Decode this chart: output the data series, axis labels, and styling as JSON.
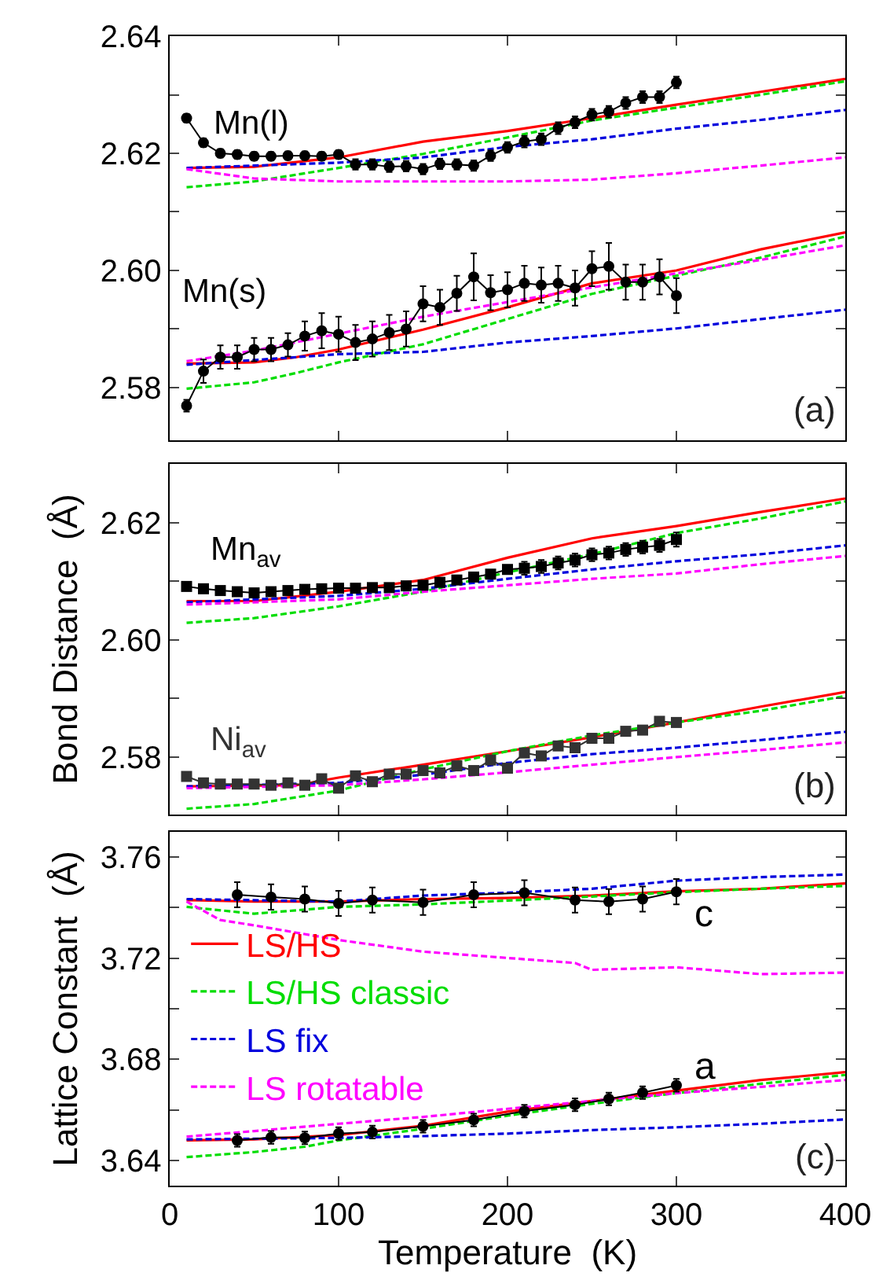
{
  "chart_data": [
    {
      "type": "line",
      "xlim": [
        0,
        400
      ],
      "xticks": [
        0,
        100,
        200,
        300,
        400
      ],
      "ylim": [
        2.571,
        2.64
      ],
      "tick_labels": "y",
      "yticks": [
        {
          "value": 2.58,
          "label": "2.58"
        },
        {
          "value": 2.59,
          "label": null
        },
        {
          "value": 2.6,
          "label": "2.60"
        },
        {
          "value": 2.61,
          "label": null
        },
        {
          "value": 2.62,
          "label": "2.62"
        },
        {
          "value": 2.63,
          "label": null
        },
        {
          "value": 2.64,
          "label": "2.64"
        }
      ],
      "annotations": [
        "(a)"
      ],
      "series": [
        {
          "color": "#ff0000",
          "line_style": "solid",
          "x": [
            10,
            50,
            100,
            150,
            200,
            250,
            300,
            350,
            400
          ],
          "values": [
            2.6175,
            2.6177,
            2.6193,
            2.622,
            2.6238,
            2.626,
            2.6283,
            2.6305,
            2.6327
          ]
        },
        {
          "color": "#00dd00",
          "line_style": "dashed",
          "x": [
            10,
            50,
            100,
            150,
            200,
            250,
            300,
            350,
            400
          ],
          "values": [
            2.6142,
            2.6152,
            2.6175,
            2.6199,
            2.6227,
            2.6256,
            2.6278,
            2.63,
            2.6323
          ]
        },
        {
          "color": "#0000dd",
          "line_style": "dashed",
          "x": [
            10,
            100,
            150,
            200,
            250,
            300,
            350,
            400
          ],
          "values": [
            2.6175,
            2.6184,
            2.6193,
            2.6211,
            2.6224,
            2.6242,
            2.6257,
            2.6274
          ]
        },
        {
          "color": "#ff00ff",
          "line_style": "dashed",
          "x": [
            10,
            50,
            100,
            150,
            200,
            250,
            300,
            350,
            400
          ],
          "values": [
            2.6173,
            2.6157,
            2.6152,
            2.6152,
            2.6152,
            2.6155,
            2.6166,
            2.6179,
            2.6193
          ]
        },
        {
          "color": "#ff0000",
          "line_style": "solid",
          "x": [
            10,
            50,
            75,
            100,
            150,
            200,
            250,
            300,
            350,
            400
          ],
          "values": [
            2.5841,
            2.5843,
            2.5852,
            2.5865,
            2.5899,
            2.5937,
            2.5978,
            2.6,
            2.6036,
            2.6065
          ]
        },
        {
          "color": "#00dd00",
          "line_style": "dashed",
          "x": [
            10,
            50,
            75,
            100,
            150,
            200,
            250,
            300,
            350,
            400
          ],
          "values": [
            2.5798,
            2.5809,
            2.5825,
            2.5843,
            2.5874,
            2.5917,
            2.596,
            2.5991,
            2.6022,
            2.6058
          ]
        },
        {
          "color": "#0000dd",
          "line_style": "dashed",
          "x": [
            10,
            100,
            150,
            200,
            250,
            300,
            350,
            400
          ],
          "values": [
            2.5839,
            2.5857,
            2.5861,
            2.5877,
            2.5888,
            2.5901,
            2.5917,
            2.5933
          ]
        },
        {
          "color": "#ff00ff",
          "line_style": "dashed",
          "x": [
            10,
            50,
            100,
            150,
            200,
            250,
            300,
            350,
            400
          ],
          "values": [
            2.5845,
            2.5863,
            2.5892,
            2.5921,
            2.5946,
            2.5971,
            2.5995,
            2.6018,
            2.6043
          ]
        },
        {
          "name": "Mn(l)",
          "color": "#000000",
          "marker": "circle",
          "line_style": "solid",
          "x": [
            10,
            20,
            30,
            40,
            50,
            60,
            70,
            80,
            90,
            100,
            110,
            120,
            130,
            140,
            150,
            160,
            170,
            180,
            190,
            200,
            210,
            220,
            230,
            240,
            250,
            260,
            270,
            280,
            290,
            300
          ],
          "values": [
            2.626,
            2.6218,
            2.62,
            2.6198,
            2.6195,
            2.6195,
            2.6196,
            2.6196,
            2.6195,
            2.6198,
            2.6181,
            2.6181,
            2.6177,
            2.6178,
            2.6173,
            2.6182,
            2.6181,
            2.6179,
            2.6196,
            2.621,
            2.622,
            2.6224,
            2.6243,
            2.6253,
            2.6266,
            2.6271,
            2.6286,
            2.6296,
            2.6296,
            2.6321
          ],
          "errors": [
            0.0007,
            0.0007,
            0.0007,
            0.0007,
            0.0007,
            0.0007,
            0.0007,
            0.0007,
            0.0007,
            0.0007,
            0.0009,
            0.0009,
            0.0009,
            0.0009,
            0.0009,
            0.0009,
            0.0009,
            0.0009,
            0.0009,
            0.0009,
            0.001,
            0.001,
            0.001,
            0.001,
            0.001,
            0.001,
            0.001,
            0.001,
            0.001,
            0.001
          ]
        },
        {
          "name": "Mn(s)",
          "color": "#000000",
          "marker": "circle",
          "line_style": "solid",
          "x": [
            10,
            20,
            30,
            40,
            50,
            60,
            70,
            80,
            90,
            100,
            110,
            120,
            130,
            140,
            150,
            160,
            170,
            180,
            190,
            200,
            210,
            220,
            230,
            240,
            250,
            260,
            270,
            280,
            290,
            300
          ],
          "values": [
            2.5769,
            2.5828,
            2.5852,
            2.5852,
            2.5865,
            2.5865,
            2.5873,
            2.5888,
            2.5897,
            2.5891,
            2.5877,
            2.5883,
            2.5894,
            2.59,
            2.5943,
            2.5937,
            2.5961,
            2.5989,
            2.5962,
            2.5967,
            2.5978,
            2.5975,
            2.5978,
            2.597,
            2.6003,
            2.6007,
            2.598,
            2.598,
            2.5989,
            2.5957
          ],
          "errors": [
            0.001,
            0.002,
            0.002,
            0.002,
            0.002,
            0.002,
            0.002,
            0.0025,
            0.003,
            0.003,
            0.003,
            0.003,
            0.003,
            0.003,
            0.003,
            0.003,
            0.003,
            0.004,
            0.003,
            0.003,
            0.003,
            0.003,
            0.003,
            0.003,
            0.003,
            0.004,
            0.003,
            0.003,
            0.003,
            0.003
          ]
        }
      ]
    },
    {
      "type": "line",
      "xlim": [
        0,
        400
      ],
      "xticks": [
        0,
        100,
        200,
        300,
        400
      ],
      "ylim": [
        2.5702,
        2.63
      ],
      "tick_labels": "y",
      "ylabel": "Bond Distance  (Å)",
      "yticks": [
        {
          "value": 2.58,
          "label": "2.58"
        },
        {
          "value": 2.59,
          "label": null
        },
        {
          "value": 2.6,
          "label": "2.60"
        },
        {
          "value": 2.61,
          "label": null
        },
        {
          "value": 2.62,
          "label": "2.62"
        }
      ],
      "annotations": [
        "(b)"
      ],
      "series": [
        {
          "color": "#ff0000",
          "line_style": "solid",
          "x": [
            10,
            50,
            100,
            150,
            200,
            250,
            300,
            350,
            400
          ],
          "values": [
            2.6066,
            2.6066,
            2.6082,
            2.6102,
            2.614,
            2.6173,
            2.6194,
            2.6218,
            2.6241
          ]
        },
        {
          "color": "#00dd00",
          "line_style": "dashed",
          "x": [
            10,
            50,
            100,
            150,
            200,
            250,
            300,
            350,
            400
          ],
          "values": [
            2.6029,
            2.6037,
            2.6057,
            2.6082,
            2.6115,
            2.6146,
            2.6182,
            2.6207,
            2.6236
          ]
        },
        {
          "color": "#0000dd",
          "line_style": "dashed",
          "x": [
            10,
            100,
            150,
            200,
            250,
            300,
            350,
            400
          ],
          "values": [
            2.6064,
            2.6075,
            2.6087,
            2.6104,
            2.612,
            2.6134,
            2.6146,
            2.6161
          ]
        },
        {
          "color": "#ff00ff",
          "line_style": "dashed",
          "x": [
            10,
            100,
            150,
            200,
            250,
            300,
            350,
            400
          ],
          "values": [
            2.606,
            2.6069,
            2.6082,
            2.6093,
            2.6104,
            2.6113,
            2.6129,
            2.6143
          ]
        },
        {
          "color": "#ff0000",
          "line_style": "solid",
          "x": [
            10,
            75,
            100,
            150,
            200,
            250,
            300,
            350,
            400
          ],
          "values": [
            2.575,
            2.5752,
            2.5765,
            2.5787,
            2.581,
            2.5834,
            2.5859,
            2.5886,
            2.5911
          ]
        },
        {
          "color": "#00dd00",
          "line_style": "dashed",
          "x": [
            10,
            50,
            100,
            150,
            200,
            250,
            300,
            350,
            400
          ],
          "values": [
            2.5712,
            2.572,
            2.5743,
            2.5779,
            2.581,
            2.5837,
            2.5859,
            2.5879,
            2.5904
          ]
        },
        {
          "color": "#0000dd",
          "line_style": "dashed",
          "x": [
            10,
            100,
            150,
            200,
            250,
            300,
            350,
            400
          ],
          "values": [
            2.575,
            2.5756,
            2.577,
            2.579,
            2.5805,
            2.5816,
            2.5829,
            2.5843
          ]
        },
        {
          "color": "#ff00ff",
          "line_style": "dashed",
          "x": [
            10,
            100,
            150,
            200,
            250,
            300,
            350,
            400
          ],
          "values": [
            2.5747,
            2.5752,
            2.5762,
            2.5774,
            2.5787,
            2.58,
            2.5812,
            2.5825
          ]
        },
        {
          "name": "Mn$_{av}$",
          "color": "#000000",
          "marker": "square",
          "line_style": "solid",
          "x": [
            10,
            20,
            30,
            40,
            50,
            60,
            70,
            80,
            90,
            100,
            110,
            120,
            130,
            140,
            150,
            160,
            170,
            180,
            190,
            200,
            210,
            220,
            230,
            240,
            250,
            260,
            270,
            280,
            290,
            300
          ],
          "values": [
            2.6091,
            2.6087,
            2.6084,
            2.6082,
            2.608,
            2.6082,
            2.6084,
            2.6086,
            2.6087,
            2.6088,
            2.6088,
            2.6089,
            2.6089,
            2.6092,
            2.6093,
            2.6098,
            2.6102,
            2.6107,
            2.6112,
            2.612,
            2.6122,
            2.6125,
            2.6131,
            2.6136,
            2.6145,
            2.6148,
            2.6154,
            2.6158,
            2.6161,
            2.6171
          ],
          "errors": [
            null,
            null,
            null,
            null,
            null,
            null,
            null,
            null,
            null,
            null,
            null,
            null,
            null,
            null,
            null,
            null,
            null,
            null,
            null,
            null,
            0.0011,
            0.0011,
            0.0011,
            0.0011,
            0.0011,
            0.0011,
            0.0011,
            0.0011,
            0.0011,
            0.0012
          ]
        },
        {
          "name": "Ni$_{av}$",
          "color": "#333333",
          "marker": "square",
          "line_style": "solid",
          "x": [
            10,
            20,
            30,
            40,
            50,
            60,
            70,
            80,
            90,
            100,
            110,
            120,
            130,
            140,
            150,
            160,
            170,
            180,
            190,
            200,
            210,
            220,
            230,
            240,
            250,
            260,
            270,
            280,
            290,
            300
          ],
          "values": [
            2.5767,
            2.5756,
            2.5754,
            2.5754,
            2.5754,
            2.5752,
            2.5756,
            2.5752,
            2.5763,
            2.5747,
            2.5768,
            2.5758,
            2.5771,
            2.5771,
            2.5777,
            2.5773,
            2.5785,
            2.5777,
            2.5795,
            2.5781,
            2.5807,
            2.5802,
            2.5819,
            2.5816,
            2.5832,
            2.5832,
            2.5844,
            2.5846,
            2.5861,
            2.5859
          ]
        }
      ]
    },
    {
      "type": "line",
      "xlim": [
        0,
        400
      ],
      "xticks": [
        0,
        100,
        200,
        300,
        400
      ],
      "ylim": [
        3.63,
        3.77
      ],
      "xlabel": "Temperature  (K)",
      "ylabel": "Lattice Constant  (Å)",
      "legend": "left",
      "yticks": [
        {
          "value": 3.64,
          "label": "3.64"
        },
        {
          "value": 3.66,
          "label": null
        },
        {
          "value": 3.68,
          "label": "3.68"
        },
        {
          "value": 3.7,
          "label": null
        },
        {
          "value": 3.72,
          "label": "3.72"
        },
        {
          "value": 3.74,
          "label": null
        },
        {
          "value": 3.76,
          "label": "3.76"
        }
      ],
      "annotations": [
        "(c)"
      ],
      "series": [
        {
          "name": "LS/HS",
          "color": "#ff0000",
          "line_style": "solid",
          "x": [
            10,
            50,
            100,
            150,
            200,
            250,
            300,
            350,
            400
          ],
          "values": [
            3.743,
            3.7424,
            3.7424,
            3.7434,
            3.7438,
            3.7448,
            3.7465,
            3.7475,
            3.7496
          ]
        },
        {
          "name": "LS/HS classic",
          "color": "#00dd00",
          "line_style": "dashed",
          "x": [
            10,
            50,
            100,
            150,
            200,
            250,
            300,
            350,
            400
          ],
          "values": [
            3.7403,
            3.7376,
            3.7403,
            3.7413,
            3.7428,
            3.7444,
            3.7461,
            3.7475,
            3.7486
          ]
        },
        {
          "name": "LS fix",
          "color": "#0000dd",
          "line_style": "dashed",
          "x": [
            10,
            100,
            150,
            200,
            250,
            300,
            350,
            400
          ],
          "values": [
            3.7434,
            3.7424,
            3.7448,
            3.7459,
            3.7475,
            3.7507,
            3.7521,
            3.7531
          ]
        },
        {
          "name": "LS rotatable",
          "color": "#ff00ff",
          "line_style": "dashed",
          "x": [
            10,
            30,
            50,
            100,
            150,
            200,
            240,
            250,
            300,
            350,
            400
          ],
          "values": [
            3.7424,
            3.7351,
            3.733,
            3.7272,
            3.7226,
            3.7201,
            3.7181,
            3.7154,
            3.7164,
            3.7137,
            3.7143
          ]
        },
        {
          "color": "#ff0000",
          "line_style": "solid",
          "x": [
            10,
            50,
            100,
            150,
            200,
            250,
            300,
            350,
            400
          ],
          "values": [
            3.6479,
            3.6483,
            3.65,
            3.6537,
            3.6593,
            3.6635,
            3.6676,
            3.6718,
            3.6749
          ]
        },
        {
          "color": "#00dd00",
          "line_style": "dashed",
          "x": [
            10,
            50,
            80,
            100,
            150,
            200,
            250,
            300,
            350,
            400
          ],
          "values": [
            3.6413,
            3.6433,
            3.6454,
            3.6479,
            3.6525,
            3.6577,
            3.6624,
            3.6666,
            3.6703,
            3.6738
          ]
        },
        {
          "color": "#0000dd",
          "line_style": "dashed",
          "x": [
            10,
            100,
            150,
            200,
            250,
            300,
            350,
            400
          ],
          "values": [
            3.6483,
            3.6489,
            3.6496,
            3.6506,
            3.652,
            3.6531,
            3.6545,
            3.6562
          ]
        },
        {
          "color": "#ff00ff",
          "line_style": "dashed",
          "x": [
            10,
            50,
            100,
            150,
            200,
            250,
            300,
            350,
            400
          ],
          "values": [
            3.6494,
            3.6516,
            3.6545,
            3.6572,
            3.6604,
            3.6635,
            3.6666,
            3.6691,
            3.6718
          ]
        },
        {
          "name": "c",
          "color": "#000000",
          "marker": "circle",
          "line_style": "solid",
          "x": [
            40,
            60,
            80,
            100,
            120,
            150,
            180,
            210,
            240,
            260,
            280,
            300
          ],
          "values": [
            3.7451,
            3.7442,
            3.7434,
            3.7417,
            3.743,
            3.7421,
            3.7451,
            3.7459,
            3.743,
            3.7424,
            3.7434,
            3.7463
          ],
          "errors": [
            0.005,
            0.005,
            0.005,
            0.005,
            0.005,
            0.005,
            0.005,
            0.005,
            0.005,
            0.005,
            0.005,
            0.005
          ]
        },
        {
          "name": "a",
          "color": "#000000",
          "marker": "circle",
          "line_style": "solid",
          "x": [
            40,
            60,
            80,
            100,
            120,
            150,
            180,
            210,
            240,
            260,
            280,
            300
          ],
          "values": [
            3.6479,
            3.6491,
            3.6489,
            3.6506,
            3.6512,
            3.6535,
            3.656,
            3.6595,
            3.662,
            3.6643,
            3.6668,
            3.6697
          ],
          "errors": [
            0.0025,
            0.0025,
            0.0025,
            0.0025,
            0.0025,
            0.0025,
            0.0025,
            0.0025,
            0.0025,
            0.0025,
            0.0025,
            0.0025
          ]
        }
      ]
    }
  ]
}
